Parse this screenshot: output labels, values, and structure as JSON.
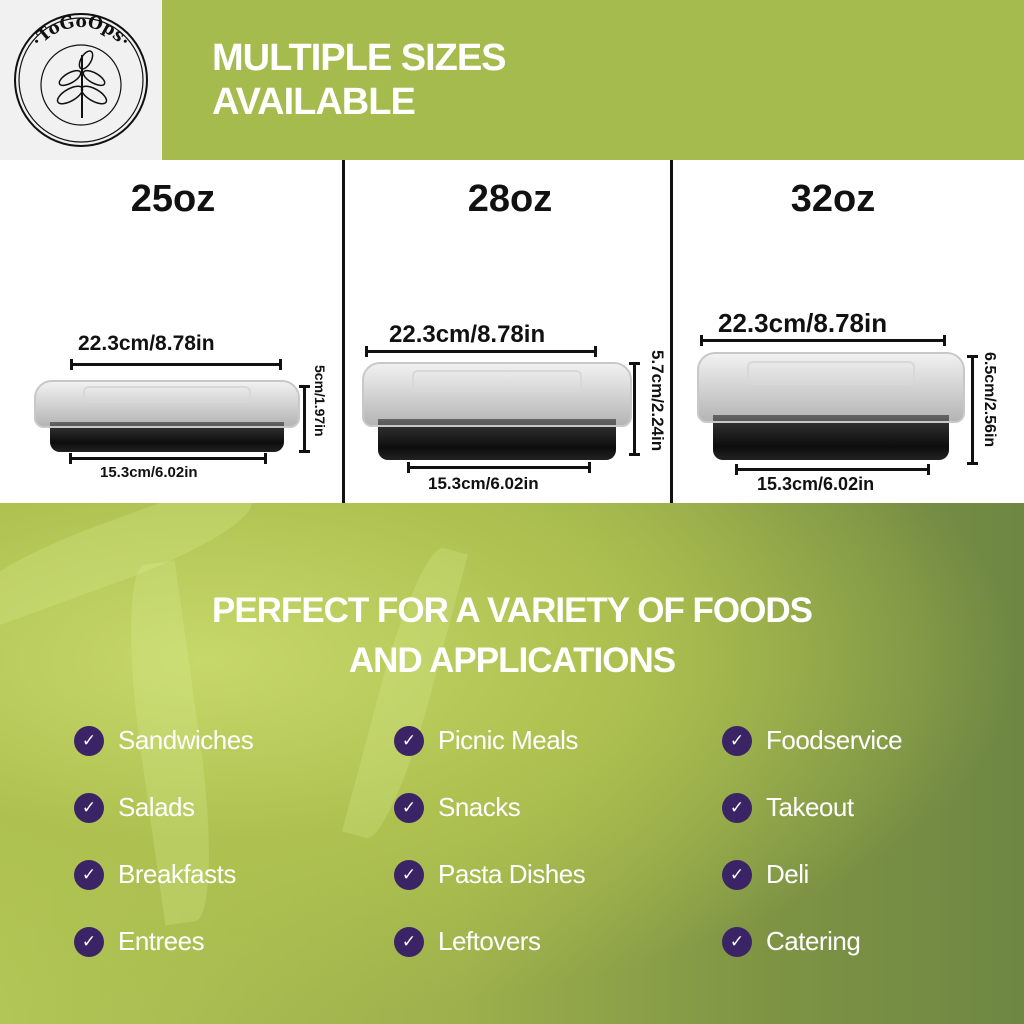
{
  "brand": {
    "logo_text": "ToGoOps"
  },
  "header": {
    "title_line1": "MULTIPLE SIZES",
    "title_line2": "AVAILABLE"
  },
  "sizes": [
    {
      "title": "25oz",
      "length": "22.3cm/8.78in",
      "base": "15.3cm/6.02in",
      "height": "5cm/1.97in"
    },
    {
      "title": "28oz",
      "length": "22.3cm/8.78in",
      "base": "15.3cm/6.02in",
      "height": "5.7cm/2.24in"
    },
    {
      "title": "32oz",
      "length": "22.3cm/8.78in",
      "base": "15.3cm/6.02in",
      "height": "6.5cm/2.56in"
    }
  ],
  "applications": {
    "headline_line1": "PERFECT FOR A VARIETY OF FOODS",
    "headline_line2": "AND APPLICATIONS",
    "columns": [
      [
        "Sandwiches",
        "Salads",
        "Breakfasts",
        "Entrees"
      ],
      [
        "Picnic Meals",
        "Snacks",
        "Pasta Dishes",
        "Leftovers"
      ],
      [
        "Foodservice",
        "Takeout",
        "Deli",
        "Catering"
      ]
    ]
  },
  "colors": {
    "header_green": "#a5bb4d",
    "check_purple": "#3a2466",
    "text_dark": "#111111"
  }
}
